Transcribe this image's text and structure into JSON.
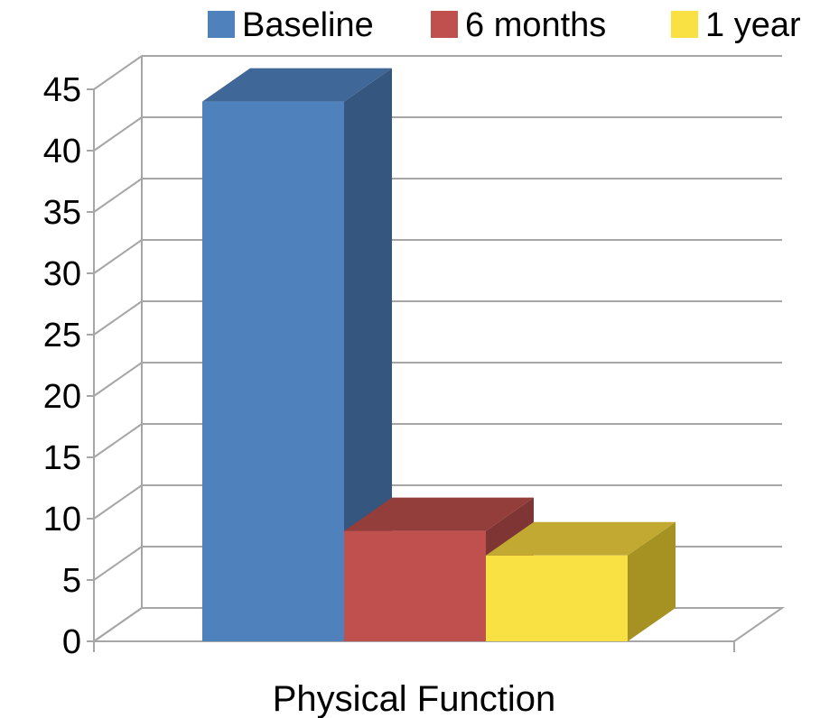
{
  "chart_data": {
    "type": "bar",
    "style": "3d-clustered-column",
    "categories": [
      "Physical Function"
    ],
    "series": [
      {
        "name": "Baseline",
        "values": [
          44
        ],
        "color": "#4F81BD",
        "side_color": "#34567F",
        "top_color": "#3F6797"
      },
      {
        "name": "6 months",
        "values": [
          9
        ],
        "color": "#C0504D",
        "side_color": "#7F3533",
        "top_color": "#933E3B"
      },
      {
        "name": "1 year",
        "values": [
          7
        ],
        "color": "#F9E043",
        "side_color": "#A59223",
        "top_color": "#C2A931"
      }
    ],
    "ylim": [
      0,
      45
    ],
    "yticks": [
      0,
      5,
      10,
      15,
      20,
      25,
      30,
      35,
      40,
      45
    ],
    "grid": true,
    "legend_position": "top",
    "gridline_color": "#A6A6A6"
  }
}
